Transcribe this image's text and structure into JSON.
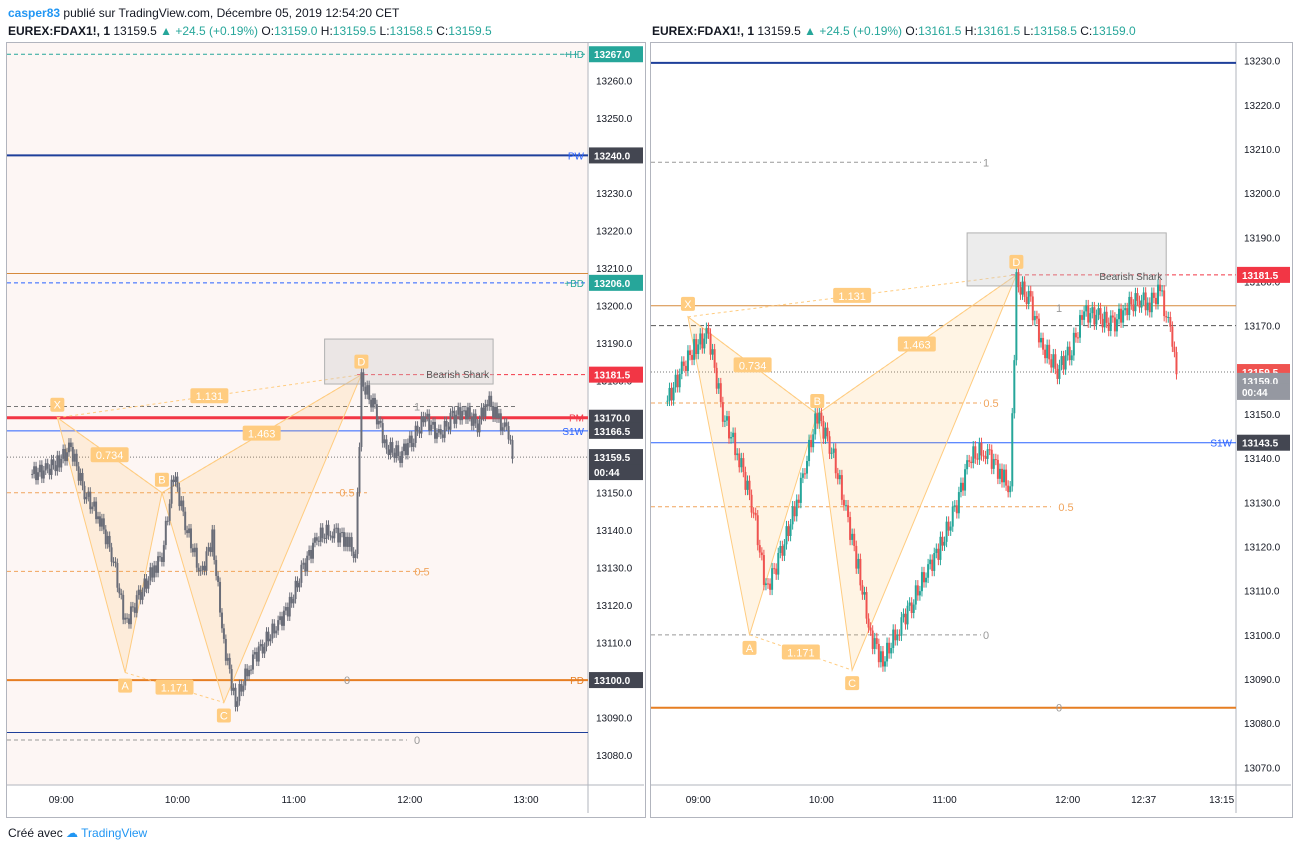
{
  "header": {
    "user": "casper83",
    "text": "publié sur TradingView.com, Décembre 05, 2019 12:54:20 CET"
  },
  "footer": {
    "created": "Créé avec",
    "brand": "TradingView"
  },
  "charts": {
    "left": {
      "symbol": "EUREX:FDAX1!, 1",
      "last": "13159.5",
      "change": "▲ +24.5 (+0.19%)",
      "O": "13159.0",
      "H": "13159.5",
      "L": "13158.5",
      "C": "13159.5",
      "yticks": [
        "13260.0",
        "13250.0",
        "13240.0",
        "13230.0",
        "13220.0",
        "13210.0",
        "13200.0",
        "13190.0",
        "13180.0",
        "13170.0",
        "13160.0",
        "13150.0",
        "13140.0",
        "13130.0",
        "13120.0",
        "13110.0",
        "13100.0",
        "13090.0",
        "13080.0"
      ],
      "xticks": [
        "09:00",
        "10:00",
        "11:00",
        "12:00",
        "13:00"
      ],
      "tags": [
        {
          "text": "13267.0",
          "bg": "#26a69a"
        },
        {
          "text": "13240.0",
          "bg": "#434651"
        },
        {
          "text": "13206.0",
          "bg": "#26a69a"
        },
        {
          "text": "13181.5",
          "bg": "#f23645"
        },
        {
          "text": "13170.0",
          "bg": "#434651"
        },
        {
          "text": "13166.5",
          "bg": "#434651"
        },
        {
          "text": "13159.5",
          "bg": "#434651"
        },
        {
          "text": "00:44",
          "bg": "#434651"
        },
        {
          "text": "13100.0",
          "bg": "#434651"
        }
      ],
      "line_labels": [
        "+HD",
        "PW",
        "+BD",
        "PM",
        "S1W",
        "PD"
      ],
      "fib_labels": [
        "1",
        "0.5",
        "0.5",
        "0",
        "0"
      ],
      "pattern": {
        "points": [
          "X",
          "A",
          "B",
          "C",
          "D"
        ],
        "ratios": [
          "0.734",
          "1.131",
          "1.463",
          "1.171"
        ],
        "name": "Bearish Shark"
      }
    },
    "right": {
      "symbol": "EUREX:FDAX1!, 1",
      "last": "13159.5",
      "change": "▲ +24.5 (+0.19%)",
      "O": "13161.5",
      "H": "13161.5",
      "L": "13158.5",
      "C": "13159.0",
      "yticks": [
        "13230.0",
        "13220.0",
        "13210.0",
        "13200.0",
        "13190.0",
        "13180.0",
        "13170.0",
        "13160.0",
        "13150.0",
        "13140.0",
        "13130.0",
        "13120.0",
        "13110.0",
        "13100.0",
        "13090.0",
        "13080.0",
        "13070.0"
      ],
      "xticks": [
        "09:00",
        "10:00",
        "11:00",
        "12:00",
        "12:37",
        "13:15"
      ],
      "tags": [
        {
          "text": "13181.5",
          "bg": "#f23645"
        },
        {
          "text": "13159.5",
          "bg": "#ef5350"
        },
        {
          "text": "13159.0",
          "bg": "#9598a1"
        },
        {
          "text": "00:44",
          "bg": "#9598a1"
        },
        {
          "text": "13143.5",
          "bg": "#434651"
        }
      ],
      "line_labels": [
        "S1W"
      ],
      "fib_labels": [
        "1",
        "1",
        "0.5",
        "0.5",
        "0",
        "0"
      ],
      "pattern": {
        "points": [
          "X",
          "A",
          "B",
          "C",
          "D"
        ],
        "ratios": [
          "0.734",
          "1.131",
          "1.463",
          "1.171"
        ],
        "name": "Bearish Shark"
      }
    }
  },
  "chart_data": [
    {
      "type": "candlestick",
      "symbol": "EUREX:FDAX1!",
      "interval": "1",
      "ylim": [
        13072,
        13270
      ],
      "xlabel": "",
      "ylabel": "",
      "x": [
        "08:45",
        "08:52",
        "08:58",
        "09:05",
        "09:12",
        "09:20",
        "09:27",
        "09:33",
        "09:40",
        "09:48",
        "09:52",
        "09:58",
        "10:05",
        "10:12",
        "10:18",
        "10:24",
        "10:30",
        "10:38",
        "10:45",
        "10:52",
        "10:58",
        "11:05",
        "11:12",
        "11:20",
        "11:28",
        "11:32",
        "11:35",
        "11:42",
        "11:48",
        "11:55",
        "12:02",
        "12:08",
        "12:15",
        "12:22",
        "12:28",
        "12:35",
        "12:40",
        "12:45",
        "12:50",
        "12:52",
        "12:54"
      ],
      "close": [
        13155,
        13156,
        13158,
        13162,
        13150,
        13143,
        13132,
        13115,
        13122,
        13130,
        13133,
        13155,
        13140,
        13128,
        13138,
        13110,
        13094,
        13105,
        13110,
        13115,
        13120,
        13130,
        13138,
        13140,
        13137,
        13133,
        13180,
        13172,
        13162,
        13160,
        13165,
        13170,
        13165,
        13170,
        13172,
        13168,
        13175,
        13170,
        13166,
        13162,
        13159.5
      ],
      "levels": [
        13267,
        13240,
        13206,
        13181.5,
        13170,
        13166.5,
        13100
      ],
      "pattern": {
        "X": 13170,
        "A": 13102,
        "B": 13150,
        "C": 13094,
        "D": 13181.5
      }
    },
    {
      "type": "candlestick",
      "symbol": "EUREX:FDAX1!",
      "interval": "1",
      "ylim": [
        13066,
        13234
      ],
      "xlabel": "",
      "ylabel": "",
      "x": [
        "08:45",
        "08:52",
        "08:58",
        "09:05",
        "09:12",
        "09:20",
        "09:27",
        "09:33",
        "09:40",
        "09:48",
        "09:52",
        "09:58",
        "10:05",
        "10:12",
        "10:18",
        "10:24",
        "10:30",
        "10:38",
        "10:45",
        "10:52",
        "10:58",
        "11:05",
        "11:12",
        "11:20",
        "11:28",
        "11:32",
        "11:35",
        "11:42",
        "11:48",
        "11:55",
        "12:02",
        "12:08",
        "12:15",
        "12:22",
        "12:28",
        "12:35",
        "12:40",
        "12:45",
        "12:50",
        "12:52",
        "12:54"
      ],
      "close": [
        13153,
        13160,
        13165,
        13168,
        13150,
        13140,
        13128,
        13110,
        13118,
        13130,
        13138,
        13150,
        13142,
        13128,
        13115,
        13100,
        13094,
        13102,
        13108,
        13115,
        13120,
        13128,
        13140,
        13142,
        13136,
        13133,
        13180,
        13175,
        13165,
        13160,
        13165,
        13173,
        13172,
        13170,
        13174,
        13176,
        13175,
        13178,
        13168,
        13162,
        13159.5
      ],
      "levels": [
        13229.5,
        13181.5,
        13143.5,
        13083.5
      ],
      "pattern": {
        "X": 13172,
        "A": 13100,
        "B": 13150,
        "C": 13092,
        "D": 13181.5
      }
    }
  ]
}
